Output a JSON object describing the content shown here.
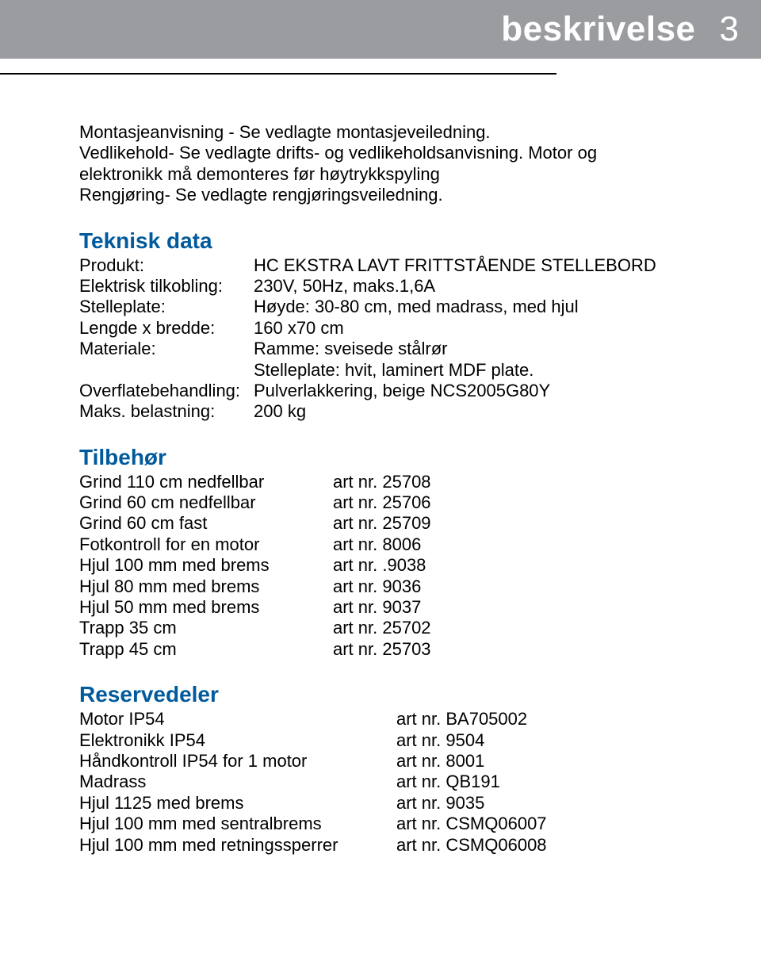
{
  "header": {
    "title": "beskrivelse",
    "page_number": "3"
  },
  "colors": {
    "header_bg": "#9a9c9f",
    "header_text": "#ffffff",
    "section_heading": "#005a9c",
    "body_text": "#000000",
    "divider": "#000000"
  },
  "typography": {
    "body_fontsize_pt": 16,
    "heading_fontsize_pt": 21,
    "header_title_fontsize_pt": 33
  },
  "intro": {
    "lines": [
      "Montasjeanvisning - Se vedlagte montasjeveiledning.",
      "Vedlikehold- Se vedlagte drifts- og vedlikeholdsanvisning. Motor og",
      "elektronikk må demonteres før høytrykkspyling",
      "Rengjøring- Se vedlagte rengjøringsveiledning."
    ]
  },
  "teknisk_data": {
    "heading": "Teknisk data",
    "rows": [
      {
        "label": "Produkt:",
        "value": "HC EKSTRA LAVT FRITTSTÅENDE STELLEBORD"
      },
      {
        "label": "Elektrisk tilkobling:",
        "value": "230V, 50Hz, maks.1,6A"
      },
      {
        "label": "Stelleplate:",
        "value": "Høyde: 30-80 cm, med madrass, med hjul"
      },
      {
        "label": "Lengde x bredde:",
        "value": "160 x70 cm"
      },
      {
        "label": "Materiale:",
        "value": "Ramme: sveisede stålrør"
      },
      {
        "label": "",
        "value": "Stelleplate: hvit, laminert MDF plate."
      },
      {
        "label": "Overflatebehandling:",
        "value": "Pulverlakkering, beige NCS2005G80Y"
      },
      {
        "label": "Maks. belastning:",
        "value": "200 kg"
      }
    ]
  },
  "tilbehor": {
    "heading": "Tilbehør",
    "rows": [
      {
        "name": "Grind 110 cm nedfellbar",
        "art": "art nr. 25708"
      },
      {
        "name": "Grind 60 cm nedfellbar",
        "art": "art nr. 25706"
      },
      {
        "name": "Grind 60 cm fast",
        "art": "art nr. 25709"
      },
      {
        "name": "Fotkontroll for en motor",
        "art": "art nr. 8006"
      },
      {
        "name": "Hjul 100 mm med brems",
        "art": "art nr. .9038"
      },
      {
        "name": "Hjul 80 mm med brems",
        "art": "art nr. 9036"
      },
      {
        "name": "Hjul 50 mm med brems",
        "art": "art nr. 9037"
      },
      {
        "name": "Trapp 35 cm",
        "art": "art nr. 25702"
      },
      {
        "name": "Trapp 45 cm",
        "art": "art nr. 25703"
      }
    ]
  },
  "reservedeler": {
    "heading": "Reservedeler",
    "rows": [
      {
        "name": "Motor IP54",
        "art": "art nr. BA705002"
      },
      {
        "name": "Elektronikk IP54",
        "art": "art nr. 9504"
      },
      {
        "name": "Håndkontroll IP54 for 1 motor",
        "art": "art nr. 8001"
      },
      {
        "name": "Madrass",
        "art": "art nr. QB191"
      },
      {
        "name": "Hjul 1125 med brems",
        "art": "art nr. 9035"
      },
      {
        "name": "Hjul 100 mm med sentralbrems",
        "art": "art nr. CSMQ06007"
      },
      {
        "name": "Hjul 100 mm med retningssperrer",
        "art": "art nr. CSMQ06008"
      }
    ]
  }
}
